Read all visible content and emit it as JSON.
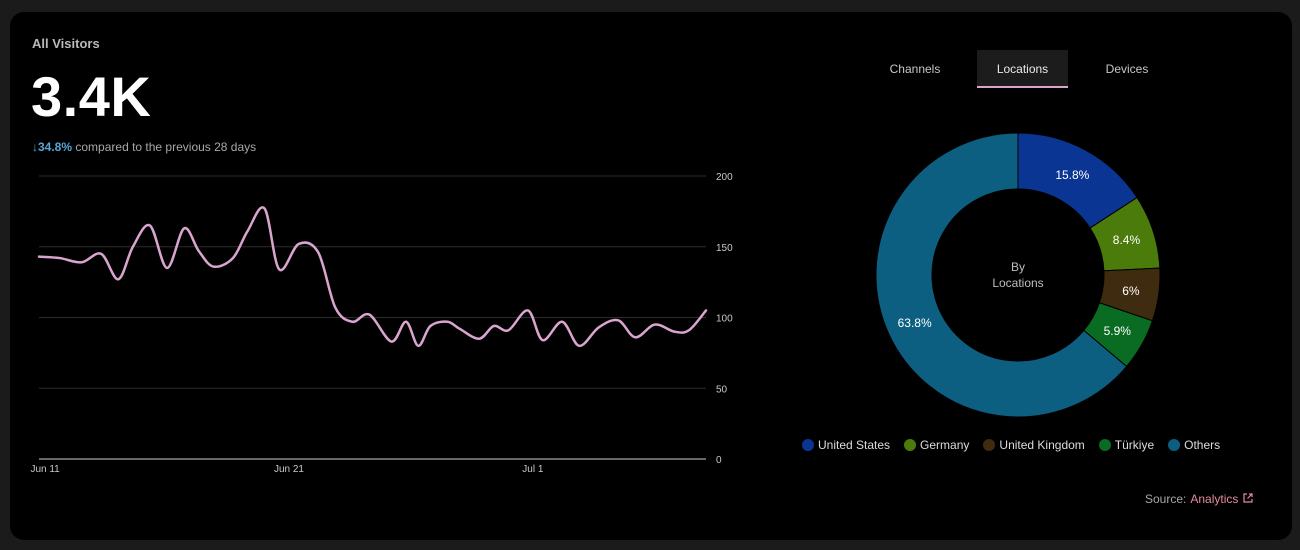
{
  "card": {
    "title": "All Visitors",
    "total": "3.4K",
    "change_arrow": "↓",
    "change_pct": "34.8%",
    "change_text": "compared to the previous 28 days"
  },
  "tabs": [
    {
      "label": "Channels",
      "active": false
    },
    {
      "label": "Locations",
      "active": true
    },
    {
      "label": "Devices",
      "active": false
    }
  ],
  "colors": {
    "line": "#d9a5cf",
    "grid": "#2c2c2c",
    "axis": "#cfcfcf",
    "tick": "#c9c9c9"
  },
  "chart_data": [
    {
      "type": "line",
      "title": "All Visitors",
      "xlabel": "",
      "ylabel": "",
      "x_tick_labels": [
        "Jun 11",
        "Jun 21",
        "Jul 1"
      ],
      "x_tick_days": [
        1,
        11,
        21
      ],
      "y_ticks": [
        0,
        50,
        100,
        150,
        200
      ],
      "ylim": [
        0,
        200
      ],
      "xlim": [
        0.75,
        28.1
      ],
      "series": [
        {
          "name": "Visitors",
          "x": [
            0.75,
            1.6,
            2.5,
            3.3,
            4.0,
            4.6,
            5.3,
            6.0,
            6.7,
            7.3,
            7.9,
            8.7,
            9.3,
            10.0,
            10.6,
            11.4,
            12.2,
            12.9,
            13.6,
            14.3,
            15.2,
            15.8,
            16.3,
            16.8,
            17.5,
            18.0,
            18.8,
            19.4,
            20.0,
            20.8,
            21.4,
            22.2,
            22.9,
            23.7,
            24.5,
            25.2,
            26.0,
            26.8,
            27.4,
            28.1
          ],
          "y": [
            143,
            142,
            139,
            145,
            127,
            150,
            165,
            135,
            163,
            147,
            136,
            142,
            161,
            177,
            134,
            152,
            146,
            107,
            97,
            102,
            83,
            97,
            80,
            94,
            97,
            92,
            85,
            94,
            91,
            105,
            84,
            97,
            80,
            93,
            98,
            86,
            95,
            90,
            91,
            105
          ]
        }
      ]
    },
    {
      "type": "pie",
      "title": "By Locations",
      "center_label_lines": [
        "By",
        "Locations"
      ],
      "slices": [
        {
          "label": "United States",
          "value": 15.8,
          "display": "15.8%",
          "color": "#0b3593"
        },
        {
          "label": "Germany",
          "value": 8.4,
          "display": "8.4%",
          "color": "#4b7b0b"
        },
        {
          "label": "United Kingdom",
          "value": 6.0,
          "display": "6%",
          "color": "#3e2b10"
        },
        {
          "label": "Türkiye",
          "value": 5.9,
          "display": "5.9%",
          "color": "#0a6b23"
        },
        {
          "label": "Others",
          "value": 63.8,
          "display": "63.8%",
          "color": "#0c5f80"
        }
      ]
    }
  ],
  "source": {
    "prefix": "Source:",
    "link": "Analytics"
  }
}
